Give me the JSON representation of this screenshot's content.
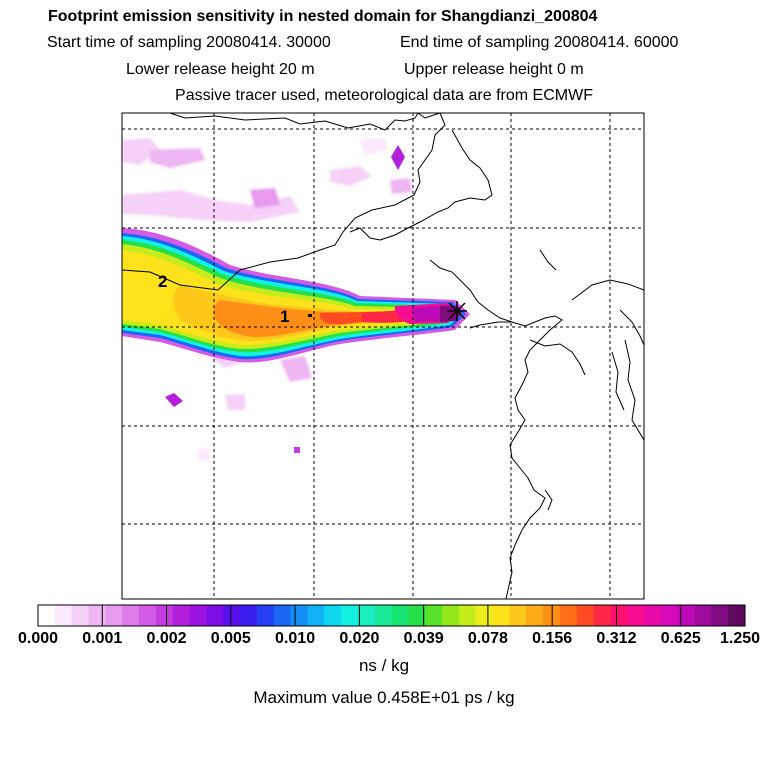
{
  "header": {
    "title": "Footprint emission sensitivity in nested domain for Shangdianzi_200804",
    "start_label": "Start time of sampling 20080414. 30000",
    "end_label": "End time of sampling 20080414. 60000",
    "lower_label": "Lower release height   20 m",
    "upper_label": "Upper release height    0 m",
    "tracer_label": "Passive tracer used, meteorological data are from ECMWF"
  },
  "map": {
    "markers": [
      {
        "label": "1"
      },
      {
        "label": "2"
      }
    ]
  },
  "colorbar": {
    "tick_labels": [
      "0.000",
      "0.001",
      "0.002",
      "0.005",
      "0.010",
      "0.020",
      "0.039",
      "0.078",
      "0.156",
      "0.312",
      "0.625",
      "1.250"
    ],
    "unit": "ns / kg",
    "colors": [
      "#ffffff",
      "#fbeafb",
      "#f5d0f7",
      "#eeb6f3",
      "#e89aee",
      "#de7cea",
      "#d35be5",
      "#c43ce0",
      "#b41fdc",
      "#9c12de",
      "#7d0fe6",
      "#5a10ee",
      "#3b1ff0",
      "#2540f3",
      "#1a66f5",
      "#148df5",
      "#10b3f3",
      "#0ed7ef",
      "#11f2e2",
      "#19f0c0",
      "#1cea98",
      "#18e472",
      "#26e04a",
      "#5be22b",
      "#94e61d",
      "#c7ec1b",
      "#ebee1d",
      "#fde21c",
      "#ffc81a",
      "#ffac18",
      "#ff8f17",
      "#ff6f17",
      "#ff4b21",
      "#ff2746",
      "#ff106e",
      "#f80c92",
      "#e80aa8",
      "#d60aba",
      "#bd0ab6",
      "#9f0b9c",
      "#800b80",
      "#5d0a5e"
    ]
  },
  "maximum_label": "Maximum value  0.458E+01 ps / kg",
  "chart_data": {
    "type": "heatmap",
    "title": "Footprint emission sensitivity in nested domain for Shangdianzi_200804",
    "colorbar_levels": [
      0.0,
      0.001,
      0.002,
      0.005,
      0.01,
      0.02,
      0.039,
      0.078,
      0.156,
      0.312,
      0.625,
      1.25
    ],
    "colorbar_unit": "ns / kg",
    "maximum_value": "0.458E+01 ps / kg",
    "grid": true,
    "release_site": "Shangdianzi"
  }
}
